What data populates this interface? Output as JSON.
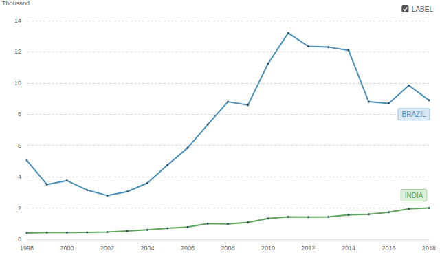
{
  "chart_data": {
    "type": "line",
    "ylabel": "Thousand",
    "annotations": [
      "LABEL"
    ],
    "x": [
      1998,
      1999,
      2000,
      2001,
      2002,
      2003,
      2004,
      2005,
      2006,
      2007,
      2008,
      2009,
      2010,
      2011,
      2012,
      2013,
      2014,
      2015,
      2016,
      2017,
      2018
    ],
    "series": [
      {
        "name": "BRAZIL",
        "color": "#4a8fba",
        "marker": "circle",
        "values": [
          5.05,
          3.5,
          3.75,
          3.15,
          2.8,
          3.05,
          3.6,
          4.75,
          5.85,
          7.35,
          8.8,
          8.6,
          11.25,
          13.2,
          12.35,
          12.3,
          12.1,
          8.8,
          8.7,
          9.85,
          8.9
        ]
      },
      {
        "name": "INDIA",
        "color": "#5fa45c",
        "marker": "circle",
        "values": [
          0.4,
          0.43,
          0.43,
          0.44,
          0.46,
          0.53,
          0.6,
          0.7,
          0.78,
          1.0,
          0.98,
          1.08,
          1.33,
          1.43,
          1.42,
          1.43,
          1.56,
          1.6,
          1.73,
          1.95,
          2.0
        ]
      }
    ],
    "xlim": [
      1998,
      2018
    ],
    "xticks": [
      1998,
      2000,
      2002,
      2004,
      2006,
      2008,
      2010,
      2012,
      2014,
      2016,
      2018
    ],
    "ylim": [
      0,
      14
    ],
    "yticks": [
      0,
      2,
      4,
      6,
      8,
      10,
      12,
      14
    ],
    "grid": true
  }
}
